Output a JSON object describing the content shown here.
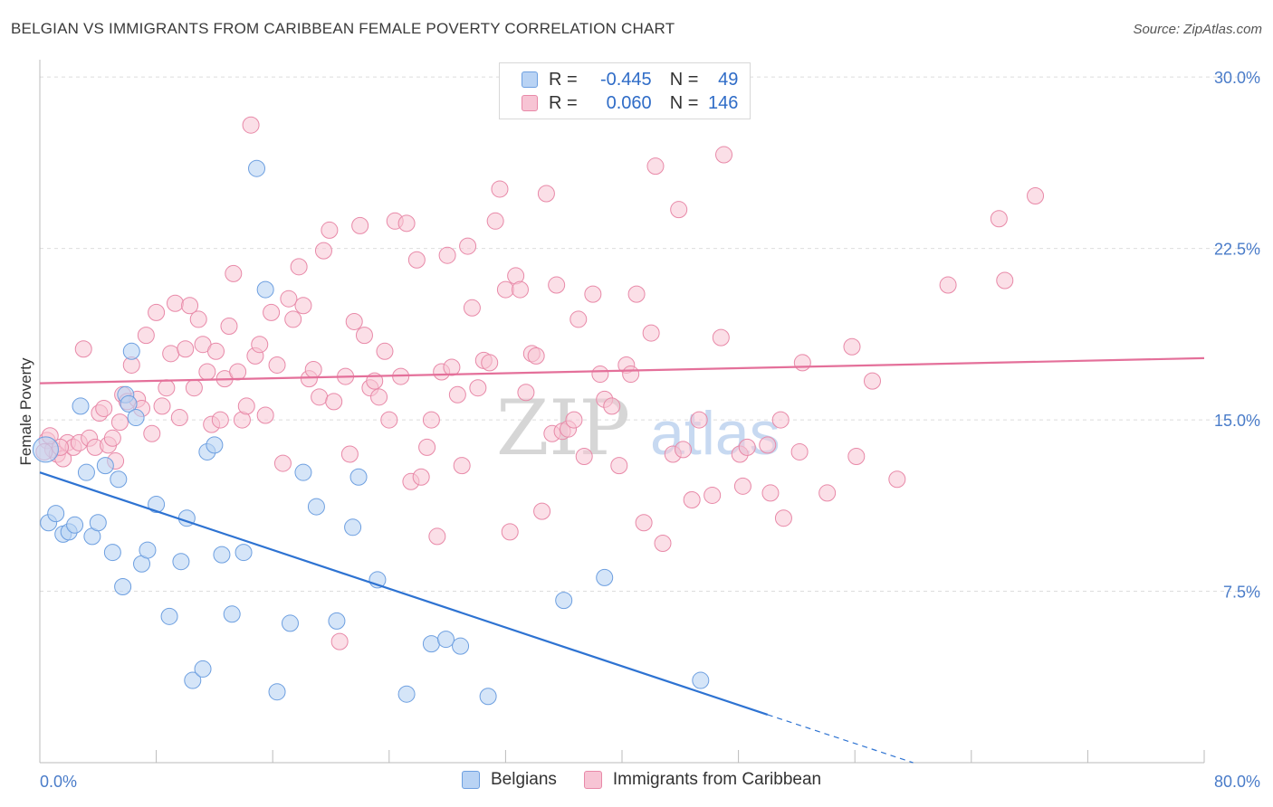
{
  "title": "BELGIAN VS IMMIGRANTS FROM CARIBBEAN FEMALE POVERTY CORRELATION CHART",
  "source": "Source: ZipAtlas.com",
  "watermark": {
    "zip": "ZIP",
    "atlas": "atlas"
  },
  "colors": {
    "blue_fill": "#b9d3f4",
    "blue_stroke": "#6d9fe0",
    "blue_line": "#2e73d2",
    "pink_fill": "#f7c4d4",
    "pink_stroke": "#e889a8",
    "pink_line": "#e4709a",
    "tick_text": "#4a7cc9",
    "grid": "#dddddd"
  },
  "legend": {
    "rows": [
      {
        "r_label": "R =",
        "r_value": "-0.445",
        "n_label": "N =",
        "n_value": "49"
      },
      {
        "r_label": "R =",
        "r_value": "0.060",
        "n_label": "N =",
        "n_value": "146"
      }
    ]
  },
  "bottom_legend": {
    "series1": "Belgians",
    "series2": "Immigrants from Caribbean"
  },
  "chart_data": {
    "type": "scatter",
    "xlabel": "",
    "ylabel": "Female Poverty",
    "xlim": [
      0,
      80
    ],
    "ylim": [
      0,
      30.6
    ],
    "x_tick_labels": [
      "0.0%",
      "80.0%"
    ],
    "y_ticks": [
      7.5,
      15.0,
      22.5,
      30.0
    ],
    "y_tick_labels": [
      "7.5%",
      "15.0%",
      "22.5%",
      "30.0%"
    ],
    "series": [
      {
        "name": "Belgians",
        "trend": {
          "x0": 0,
          "y0": 12.7,
          "x1": 50,
          "y1": 2.1,
          "dash_to_x": 60,
          "dash_to_y": 0
        },
        "points": [
          [
            0.6,
            10.5
          ],
          [
            1.1,
            10.9
          ],
          [
            1.6,
            10.0
          ],
          [
            2.0,
            10.1
          ],
          [
            2.4,
            10.4
          ],
          [
            2.8,
            15.6
          ],
          [
            3.2,
            12.7
          ],
          [
            3.6,
            9.9
          ],
          [
            4.0,
            10.5
          ],
          [
            4.5,
            13.0
          ],
          [
            5.0,
            9.2
          ],
          [
            5.4,
            12.4
          ],
          [
            5.7,
            7.7
          ],
          [
            5.9,
            16.1
          ],
          [
            6.1,
            15.7
          ],
          [
            6.3,
            18.0
          ],
          [
            6.6,
            15.1
          ],
          [
            7.0,
            8.7
          ],
          [
            7.4,
            9.3
          ],
          [
            8.0,
            11.3
          ],
          [
            8.9,
            6.4
          ],
          [
            9.7,
            8.8
          ],
          [
            10.1,
            10.7
          ],
          [
            10.5,
            3.6
          ],
          [
            11.2,
            4.1
          ],
          [
            11.5,
            13.6
          ],
          [
            12.0,
            13.9
          ],
          [
            12.5,
            9.1
          ],
          [
            13.2,
            6.5
          ],
          [
            14.0,
            9.2
          ],
          [
            14.9,
            26.0
          ],
          [
            15.5,
            20.7
          ],
          [
            16.3,
            3.1
          ],
          [
            17.2,
            6.1
          ],
          [
            18.1,
            12.7
          ],
          [
            19.0,
            11.2
          ],
          [
            20.4,
            6.2
          ],
          [
            21.5,
            10.3
          ],
          [
            21.9,
            12.5
          ],
          [
            23.2,
            8.0
          ],
          [
            25.2,
            3.0
          ],
          [
            26.9,
            5.2
          ],
          [
            27.9,
            5.4
          ],
          [
            28.9,
            5.1
          ],
          [
            30.8,
            2.9
          ],
          [
            36.0,
            7.1
          ],
          [
            38.8,
            8.1
          ],
          [
            45.4,
            3.6
          ],
          [
            0.4,
            13.7
          ]
        ]
      },
      {
        "name": "Immigrants from Caribbean",
        "trend": {
          "x0": 0,
          "y0": 16.6,
          "x1": 80,
          "y1": 17.7
        },
        "points": [
          [
            0.5,
            14.1
          ],
          [
            0.9,
            13.7
          ],
          [
            1.2,
            13.5
          ],
          [
            1.6,
            13.3
          ],
          [
            1.9,
            14.0
          ],
          [
            2.3,
            13.8
          ],
          [
            2.7,
            14.0
          ],
          [
            3.0,
            18.1
          ],
          [
            3.4,
            14.2
          ],
          [
            3.8,
            13.8
          ],
          [
            4.1,
            15.3
          ],
          [
            4.4,
            15.5
          ],
          [
            4.7,
            13.9
          ],
          [
            5.0,
            14.2
          ],
          [
            5.2,
            13.2
          ],
          [
            5.5,
            14.9
          ],
          [
            5.7,
            16.1
          ],
          [
            6.0,
            15.8
          ],
          [
            6.3,
            17.4
          ],
          [
            6.7,
            15.9
          ],
          [
            7.0,
            15.5
          ],
          [
            7.3,
            18.7
          ],
          [
            7.7,
            14.4
          ],
          [
            8.0,
            19.7
          ],
          [
            8.4,
            15.6
          ],
          [
            8.7,
            16.4
          ],
          [
            9.0,
            17.9
          ],
          [
            9.3,
            20.1
          ],
          [
            9.6,
            15.1
          ],
          [
            10.0,
            18.1
          ],
          [
            10.3,
            20.0
          ],
          [
            10.6,
            16.4
          ],
          [
            10.9,
            19.4
          ],
          [
            11.2,
            18.3
          ],
          [
            11.5,
            17.1
          ],
          [
            11.8,
            14.8
          ],
          [
            12.1,
            18.0
          ],
          [
            12.4,
            15.0
          ],
          [
            12.7,
            16.8
          ],
          [
            13.0,
            19.1
          ],
          [
            13.3,
            21.4
          ],
          [
            13.6,
            17.1
          ],
          [
            13.9,
            15.0
          ],
          [
            14.2,
            15.6
          ],
          [
            14.5,
            27.9
          ],
          [
            14.8,
            17.8
          ],
          [
            15.1,
            18.3
          ],
          [
            15.5,
            15.2
          ],
          [
            15.9,
            19.7
          ],
          [
            16.3,
            17.4
          ],
          [
            16.7,
            13.1
          ],
          [
            17.1,
            20.3
          ],
          [
            17.4,
            19.4
          ],
          [
            17.8,
            21.7
          ],
          [
            18.1,
            20.0
          ],
          [
            18.5,
            16.8
          ],
          [
            18.8,
            17.2
          ],
          [
            19.2,
            16.0
          ],
          [
            19.5,
            22.4
          ],
          [
            19.9,
            23.3
          ],
          [
            20.2,
            15.8
          ],
          [
            20.6,
            5.3
          ],
          [
            21.0,
            16.9
          ],
          [
            21.3,
            13.5
          ],
          [
            21.6,
            19.3
          ],
          [
            22.0,
            23.5
          ],
          [
            22.3,
            18.7
          ],
          [
            22.7,
            16.4
          ],
          [
            23.0,
            16.7
          ],
          [
            23.3,
            16.0
          ],
          [
            23.7,
            18.0
          ],
          [
            24.0,
            15.0
          ],
          [
            24.4,
            23.7
          ],
          [
            24.8,
            16.9
          ],
          [
            25.2,
            23.6
          ],
          [
            25.5,
            12.3
          ],
          [
            25.9,
            22.0
          ],
          [
            26.2,
            12.5
          ],
          [
            26.6,
            13.8
          ],
          [
            26.9,
            15.0
          ],
          [
            27.3,
            9.9
          ],
          [
            27.6,
            17.1
          ],
          [
            28.0,
            22.2
          ],
          [
            28.3,
            17.3
          ],
          [
            28.7,
            16.1
          ],
          [
            29.0,
            13.0
          ],
          [
            29.4,
            22.6
          ],
          [
            29.7,
            19.9
          ],
          [
            30.1,
            16.4
          ],
          [
            30.5,
            17.6
          ],
          [
            30.9,
            17.5
          ],
          [
            31.3,
            23.7
          ],
          [
            31.6,
            25.1
          ],
          [
            32.0,
            20.7
          ],
          [
            32.3,
            10.1
          ],
          [
            32.7,
            21.3
          ],
          [
            33.0,
            20.7
          ],
          [
            33.4,
            16.2
          ],
          [
            33.8,
            17.9
          ],
          [
            34.1,
            17.8
          ],
          [
            34.5,
            11.0
          ],
          [
            34.8,
            24.9
          ],
          [
            35.2,
            14.4
          ],
          [
            35.5,
            20.9
          ],
          [
            35.9,
            14.5
          ],
          [
            36.3,
            14.6
          ],
          [
            36.7,
            15.0
          ],
          [
            37.0,
            19.4
          ],
          [
            37.4,
            13.4
          ],
          [
            38.0,
            20.5
          ],
          [
            38.5,
            17.0
          ],
          [
            38.8,
            15.9
          ],
          [
            39.3,
            15.6
          ],
          [
            39.8,
            13.0
          ],
          [
            40.3,
            17.4
          ],
          [
            40.6,
            17.0
          ],
          [
            41.0,
            20.5
          ],
          [
            41.5,
            10.5
          ],
          [
            42.0,
            18.8
          ],
          [
            42.3,
            26.1
          ],
          [
            42.8,
            9.6
          ],
          [
            43.5,
            13.5
          ],
          [
            43.9,
            24.2
          ],
          [
            44.2,
            13.7
          ],
          [
            44.8,
            11.5
          ],
          [
            45.3,
            15.0
          ],
          [
            46.2,
            11.7
          ],
          [
            46.8,
            18.6
          ],
          [
            47.0,
            26.6
          ],
          [
            48.1,
            13.5
          ],
          [
            48.3,
            12.1
          ],
          [
            48.6,
            13.8
          ],
          [
            50.0,
            13.9
          ],
          [
            50.2,
            11.8
          ],
          [
            50.9,
            15.0
          ],
          [
            51.1,
            10.7
          ],
          [
            52.2,
            13.6
          ],
          [
            52.4,
            17.5
          ],
          [
            54.1,
            11.8
          ],
          [
            55.8,
            18.2
          ],
          [
            56.1,
            13.4
          ],
          [
            57.2,
            16.7
          ],
          [
            58.9,
            12.4
          ],
          [
            62.4,
            20.9
          ],
          [
            65.9,
            23.8
          ],
          [
            66.3,
            21.1
          ],
          [
            68.4,
            24.8
          ],
          [
            0.3,
            13.6
          ],
          [
            0.7,
            14.3
          ],
          [
            1.4,
            13.8
          ]
        ]
      }
    ]
  }
}
